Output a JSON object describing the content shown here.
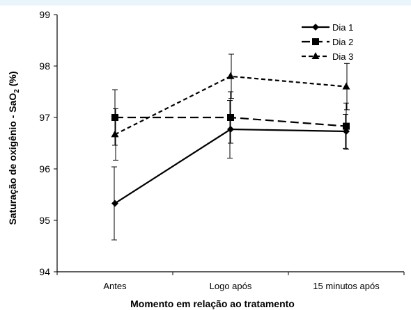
{
  "chart_data": {
    "type": "line",
    "title": "",
    "xlabel": "Momento em relação ao tratamento",
    "ylabel": "Saturação de oxigênio - SaO2 (%)",
    "ylabel_parts": {
      "before": "Saturação de oxigênio - SaO",
      "sub": "2",
      "after": " (%)"
    },
    "categories": [
      "Antes",
      "Logo após",
      "15 minutos após"
    ],
    "ylim": [
      94,
      99
    ],
    "yticks": [
      94,
      95,
      96,
      97,
      98,
      99
    ],
    "grid": false,
    "legend_position": "top-right",
    "series": [
      {
        "name": "Dia 1",
        "marker": "diamond",
        "dash": "solid",
        "values": [
          95.33,
          96.77,
          96.73
        ],
        "error": [
          0.71,
          0.56,
          0.33
        ]
      },
      {
        "name": "Dia 2",
        "marker": "square",
        "dash": "long-dash",
        "values": [
          97.0,
          97.0,
          96.83
        ],
        "error": [
          0.54,
          0.5,
          0.45
        ]
      },
      {
        "name": "Dia 3",
        "marker": "triangle",
        "dash": "short-dash",
        "values": [
          96.67,
          97.8,
          97.6
        ],
        "error": [
          0.5,
          0.43,
          0.45
        ]
      }
    ]
  }
}
